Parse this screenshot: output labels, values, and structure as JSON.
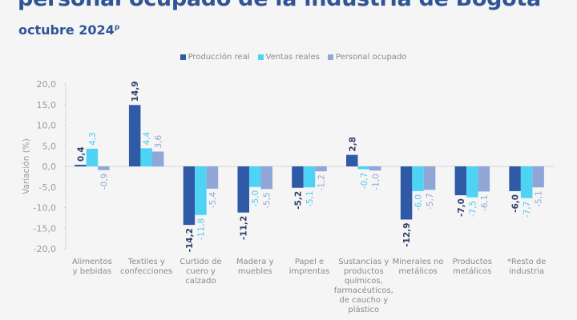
{
  "header": {
    "title": "personal ocupado de la industria de Bogotá",
    "subtitle": "octubre 2024",
    "subtitle_superscript": "p"
  },
  "chart_data": {
    "type": "bar",
    "title": "",
    "ylabel": "Variación (%)",
    "xlabel": "",
    "ylim": [
      -20,
      20
    ],
    "yticks": [
      "20,0",
      "15,0",
      "10,0",
      "5,0",
      "0,0",
      "-5,0",
      "-10,0",
      "-15,0",
      "-20,0"
    ],
    "ytick_values": [
      20,
      15,
      10,
      5,
      0,
      -5,
      -10,
      -15,
      -20
    ],
    "grid": false,
    "legend_position": "top-center",
    "categories": [
      [
        "Alimentos",
        "y bebidas"
      ],
      [
        "Textiles y",
        "confecciones"
      ],
      [
        "Curtido de",
        "cuero y",
        "calzado"
      ],
      [
        "Madera y",
        "muebles"
      ],
      [
        "Papel e",
        "imprentas"
      ],
      [
        "Sustancias y",
        "productos",
        "químicos,",
        "farmacéuticos,",
        "de caucho y",
        "plástico"
      ],
      [
        "Minerales no",
        "metálicos"
      ],
      [
        "Productos",
        "metálicos"
      ],
      [
        "*Resto de",
        "industria"
      ]
    ],
    "series": [
      {
        "name": "Producción real",
        "color": "#2e5aa6",
        "label_color": "#2b3f6b",
        "values": [
          0.4,
          14.9,
          -14.2,
          -11.2,
          -5.2,
          2.8,
          -12.9,
          -7.0,
          -6.0
        ],
        "labels": [
          "0,4",
          "14,9",
          "-14,2",
          "-11,2",
          "-5,2",
          "2,8",
          "-12,9",
          "-7,0",
          "-6,0"
        ]
      },
      {
        "name": "Ventas reales",
        "color": "#4fd3f5",
        "label_color": "#4cc9ec",
        "values": [
          4.3,
          4.4,
          -11.8,
          -5.0,
          -5.1,
          -0.7,
          -6.0,
          -7.5,
          -7.7
        ],
        "labels": [
          "4,3",
          "4,4",
          "-11,8",
          "-5,0",
          "-5,1",
          "-0,7",
          "-6,0",
          "-7,5",
          "-7,7"
        ]
      },
      {
        "name": "Personal ocupado",
        "color": "#8fa6d6",
        "label_color": "#8fa6d6",
        "values": [
          -0.9,
          3.6,
          -5.4,
          -5.5,
          -1.2,
          -1.0,
          -5.7,
          -6.1,
          -5.1
        ],
        "labels": [
          "-0,9",
          "3,6",
          "-5,4",
          "-5,5",
          "-1,2",
          "-1,0",
          "-5,7",
          "-6,1",
          "-5,1"
        ]
      }
    ]
  }
}
